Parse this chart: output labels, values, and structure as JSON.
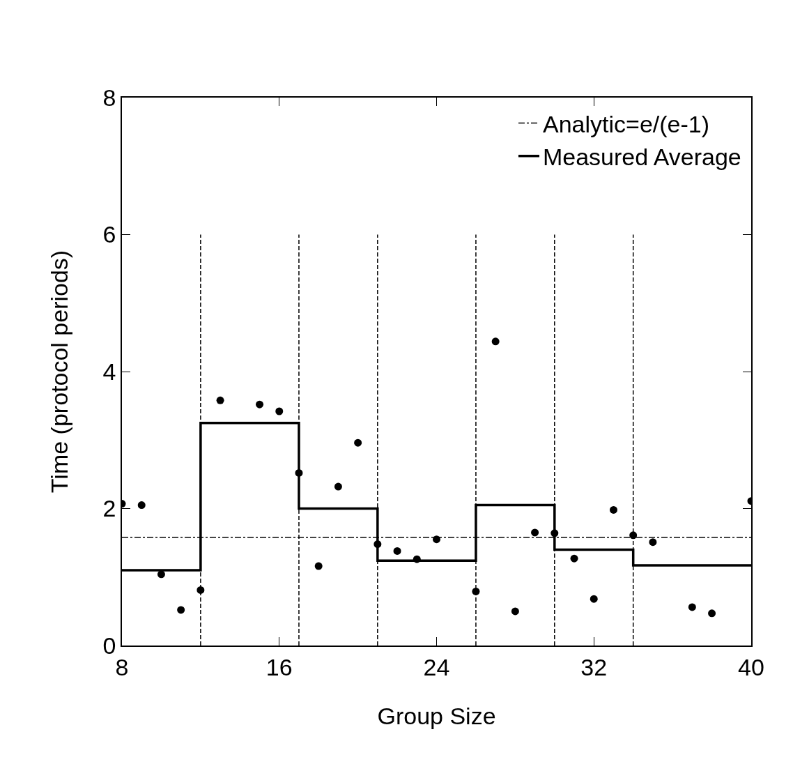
{
  "chart_data": {
    "type": "scatter",
    "xlabel": "Group Size",
    "ylabel": "Time (protocol periods)",
    "xlim": [
      8,
      40
    ],
    "xticks": [
      8,
      16,
      24,
      32,
      40
    ],
    "ylim": [
      0,
      8
    ],
    "yticks": [
      0,
      2,
      4,
      6,
      8
    ],
    "grid": false,
    "legend": "top right",
    "marker": "circle",
    "series": [
      {
        "type": "line",
        "color": "#000000",
        "line_style": "dashed",
        "marker": "none",
        "x": [
          12,
          12
        ],
        "values": [
          0,
          6
        ]
      },
      {
        "type": "line",
        "color": "#000000",
        "line_style": "dashed",
        "marker": "none",
        "x": [
          17,
          17
        ],
        "values": [
          0,
          6
        ]
      },
      {
        "type": "line",
        "color": "#000000",
        "line_style": "dashed",
        "marker": "none",
        "x": [
          21,
          21
        ],
        "values": [
          0,
          6
        ]
      },
      {
        "type": "line",
        "color": "#000000",
        "line_style": "dashed",
        "marker": "none",
        "x": [
          26,
          26
        ],
        "values": [
          0,
          6
        ]
      },
      {
        "type": "line",
        "color": "#000000",
        "line_style": "dashed",
        "marker": "none",
        "x": [
          30,
          30
        ],
        "values": [
          0,
          6
        ]
      },
      {
        "type": "line",
        "color": "#000000",
        "line_style": "dashed",
        "marker": "none",
        "x": [
          34,
          34
        ],
        "values": [
          0,
          6
        ]
      },
      {
        "type": "line",
        "name": "Analytic=e/(e-1)",
        "color": "#000000",
        "line_style": "dashdot",
        "marker": "none",
        "x": [
          8,
          40
        ],
        "values": [
          1.58,
          1.58
        ]
      },
      {
        "type": "step",
        "name": "Measured Average",
        "color": "#000000",
        "line_style": "solid",
        "marker": "none",
        "x": [
          8,
          12,
          17,
          21,
          26,
          30,
          34,
          40
        ],
        "values": [
          1.1,
          3.25,
          2.0,
          1.24,
          2.05,
          1.4,
          1.17,
          1.17
        ]
      },
      {
        "color": "#000000",
        "x": [
          8,
          9,
          10,
          11,
          12,
          13,
          15,
          16,
          17,
          18,
          19,
          20,
          21,
          22,
          23,
          24,
          26,
          27,
          28,
          29,
          30,
          31,
          32,
          33,
          34,
          35,
          37,
          38,
          40
        ],
        "values": [
          2.07,
          2.05,
          1.04,
          0.52,
          0.81,
          3.58,
          3.52,
          3.42,
          2.52,
          1.16,
          2.32,
          2.96,
          1.48,
          1.38,
          1.26,
          1.55,
          0.79,
          4.44,
          0.5,
          1.65,
          1.64,
          1.27,
          0.68,
          1.98,
          1.61,
          1.51,
          0.56,
          0.47,
          2.11
        ]
      }
    ]
  }
}
